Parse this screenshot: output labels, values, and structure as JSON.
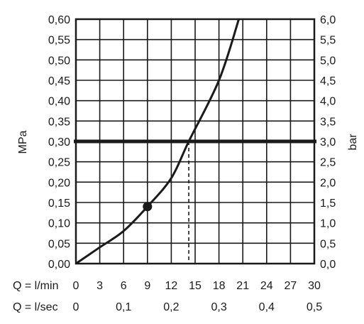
{
  "chart_data": {
    "type": "line",
    "x_unit_label": "Q = l/min",
    "x2_unit_label": "Q = l/sec",
    "y_left_label": "MPa",
    "y_right_label": "bar",
    "x_range": [
      0,
      30
    ],
    "y_range": [
      0,
      0.6
    ],
    "x_ticks": [
      "0",
      "3",
      "6",
      "9",
      "12",
      "15",
      "18",
      "21",
      "24",
      "27",
      "30"
    ],
    "x2_ticks": [
      {
        "value": 0,
        "label": "0"
      },
      {
        "value": 6,
        "label": "0,1"
      },
      {
        "value": 12,
        "label": "0,2"
      },
      {
        "value": 18,
        "label": "0,3"
      },
      {
        "value": 24,
        "label": "0,4"
      },
      {
        "value": 30,
        "label": "0,5"
      }
    ],
    "y_left_ticks": [
      "0,00",
      "0,05",
      "0,10",
      "0,15",
      "0,20",
      "0,25",
      "0,30",
      "0,35",
      "0,40",
      "0,45",
      "0,50",
      "0,55",
      "0,60"
    ],
    "y_right_ticks": [
      "0,0",
      "0,5",
      "1,0",
      "1,5",
      "2,0",
      "2,5",
      "3,0",
      "3,5",
      "4,0",
      "4,5",
      "5,0",
      "5,5",
      "6,0"
    ],
    "grid": true,
    "series": [
      {
        "points": [
          [
            0,
            0
          ],
          [
            3,
            0.04
          ],
          [
            6,
            0.08
          ],
          [
            9,
            0.14
          ],
          [
            12,
            0.21
          ],
          [
            14.2,
            0.3
          ],
          [
            18,
            0.45
          ],
          [
            20.5,
            0.6
          ]
        ]
      }
    ],
    "marker_point": [
      9,
      0.14
    ],
    "reference_line_y": 0.3,
    "dashed_line_x": 14.2,
    "colors": {
      "line": "#1a1a1a",
      "grid": "#1a1a1a",
      "background": "#ffffff"
    }
  }
}
